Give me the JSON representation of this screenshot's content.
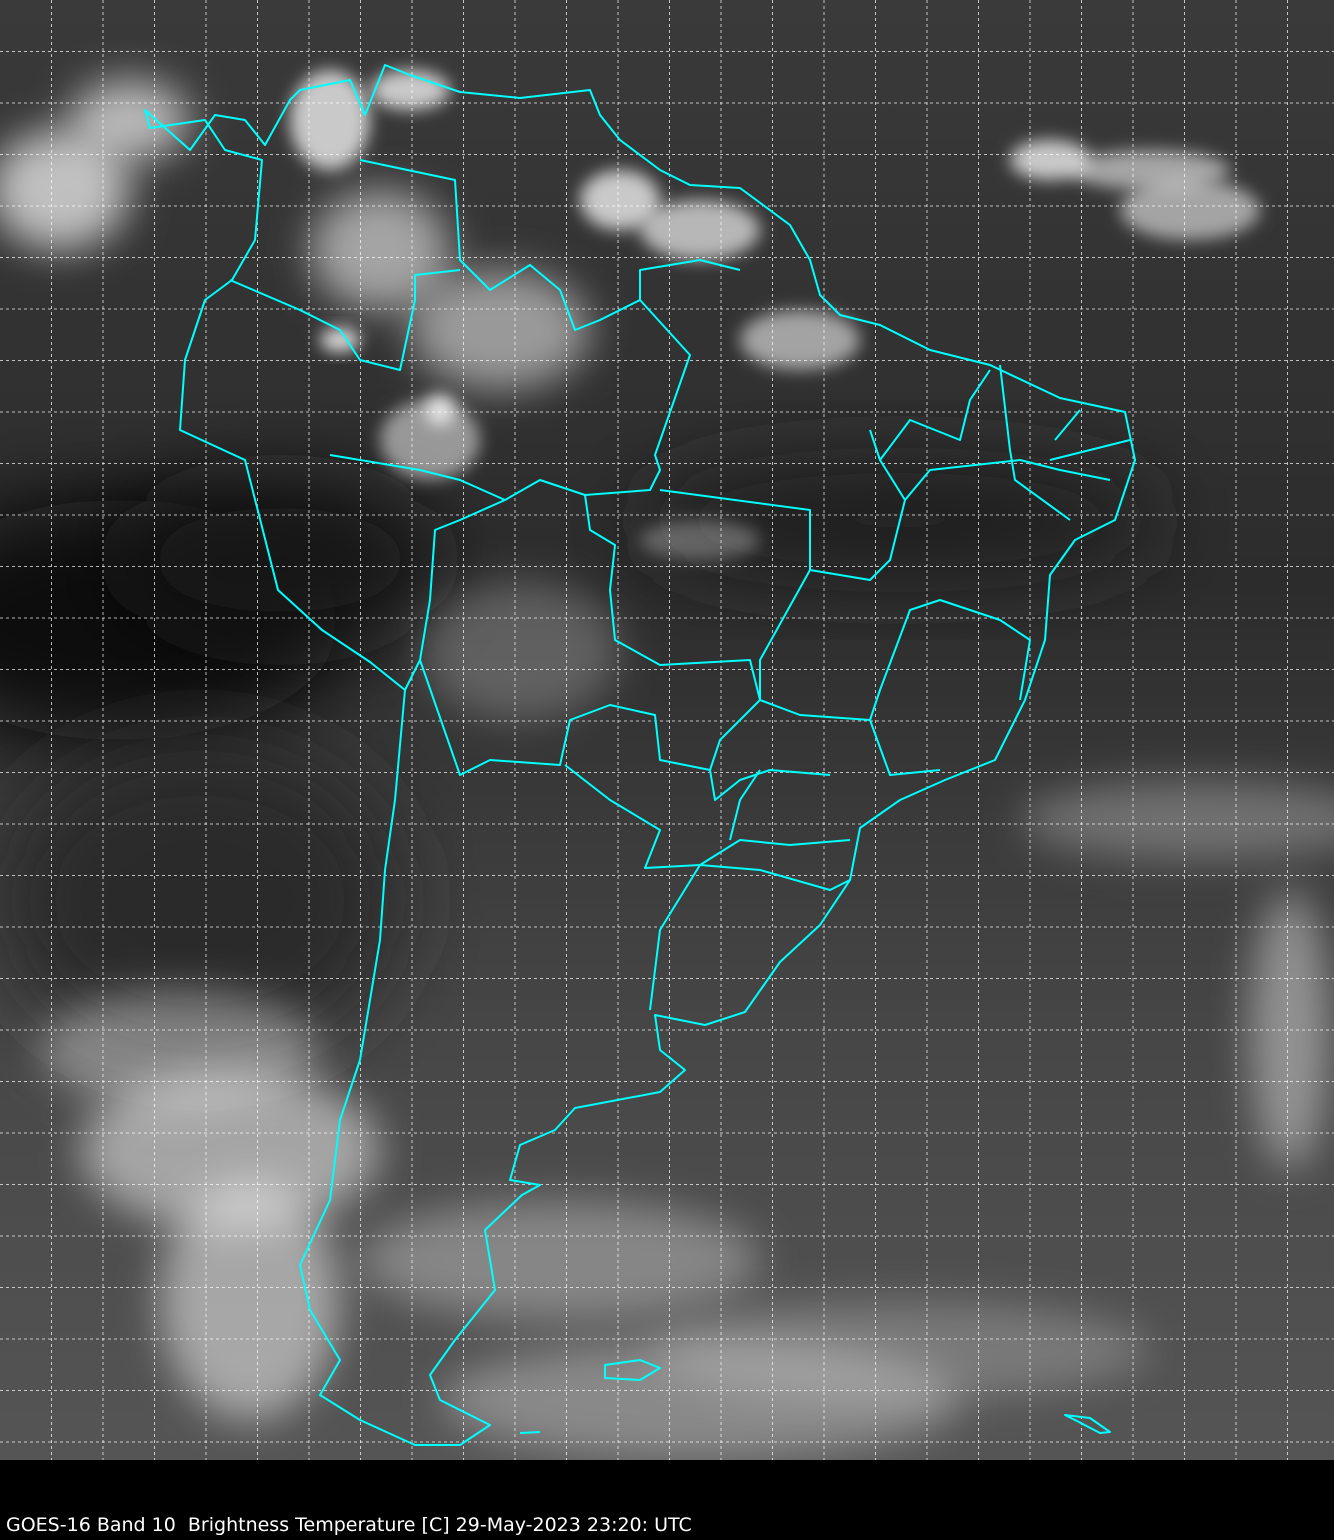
{
  "caption": "GOES-16 Band 10  Brightness Temperature [C] 29-May-2023 23:20: UTC",
  "map": {
    "region": "South America",
    "imagery": "infrared brightness temperature, grayscale",
    "colors": {
      "borders": "#00ffff",
      "grid": "#ffffff",
      "background": "#000000"
    },
    "gridlines": "dashed"
  }
}
